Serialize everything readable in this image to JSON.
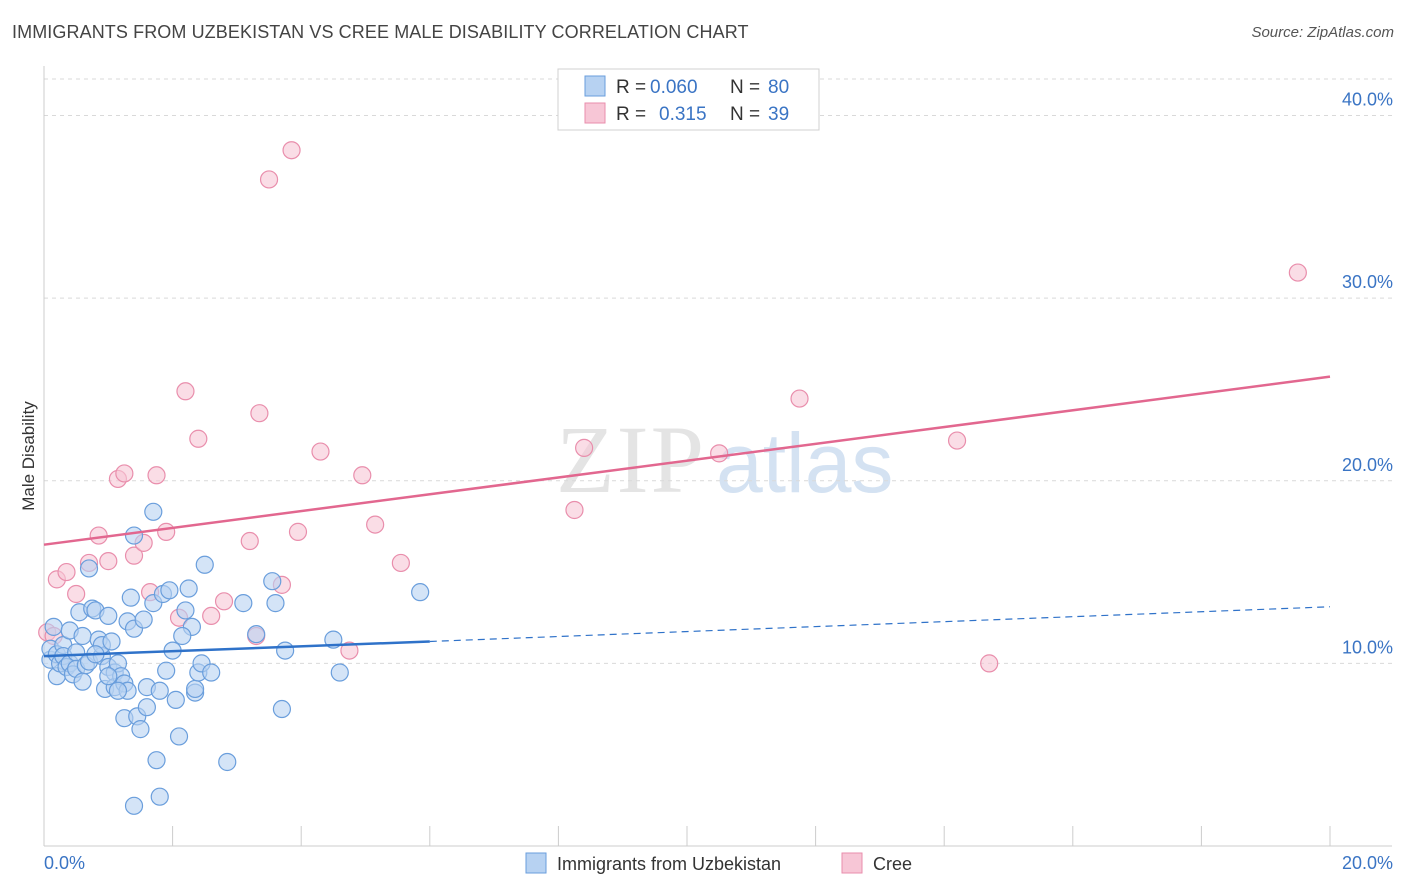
{
  "title": "IMMIGRANTS FROM UZBEKISTAN VS CREE MALE DISABILITY CORRELATION CHART",
  "source": "Source: ZipAtlas.com",
  "watermark": {
    "zip": "ZIP",
    "atlas": "atlas"
  },
  "colors": {
    "blue_fill": "#b7d2f2",
    "blue_stroke": "#6a9edc",
    "blue_line": "#2f72c9",
    "pink_fill": "#f7c6d6",
    "pink_stroke": "#e98eac",
    "pink_line": "#e2678f",
    "axis_label": "#3a74c4",
    "grid": "#d9d9d9"
  },
  "legend_stats": [
    {
      "r_label": "R =",
      "r_value": "0.060",
      "n_label": "N =",
      "n_value": "80"
    },
    {
      "r_label": "R =",
      "r_value": "0.315",
      "n_label": "N =",
      "n_value": "39"
    }
  ],
  "chart_data": {
    "type": "scatter",
    "title": "IMMIGRANTS FROM UZBEKISTAN VS CREE MALE DISABILITY CORRELATION CHART",
    "xlabel": "",
    "ylabel": "Male Disability",
    "xlim": [
      0,
      20
    ],
    "ylim": [
      0,
      42
    ],
    "x_tick_labels": [
      "0.0%",
      "20.0%"
    ],
    "y_tick_labels": [
      "10.0%",
      "20.0%",
      "30.0%",
      "40.0%"
    ],
    "y_ticks": [
      10,
      20,
      30,
      40
    ],
    "grid": true,
    "legend_position": "bottom",
    "series": [
      {
        "name": "Immigrants from Uzbekistan",
        "trend": {
          "x": [
            0,
            6
          ],
          "y": [
            10.4,
            11.2
          ],
          "dashed_to": [
            20,
            13.1
          ]
        },
        "points": [
          [
            0.1,
            10.2
          ],
          [
            0.1,
            10.8
          ],
          [
            0.15,
            12.0
          ],
          [
            0.2,
            9.3
          ],
          [
            0.2,
            10.5
          ],
          [
            0.25,
            10.0
          ],
          [
            0.3,
            11.0
          ],
          [
            0.3,
            10.4
          ],
          [
            0.35,
            9.8
          ],
          [
            0.4,
            11.8
          ],
          [
            0.4,
            10.0
          ],
          [
            0.45,
            9.4
          ],
          [
            0.5,
            10.6
          ],
          [
            0.5,
            9.7
          ],
          [
            0.55,
            12.8
          ],
          [
            0.6,
            9.0
          ],
          [
            0.6,
            11.5
          ],
          [
            0.65,
            9.9
          ],
          [
            0.7,
            15.2
          ],
          [
            0.7,
            10.1
          ],
          [
            0.75,
            13.0
          ],
          [
            0.8,
            12.9
          ],
          [
            0.85,
            11.3
          ],
          [
            0.9,
            10.4
          ],
          [
            0.9,
            11.0
          ],
          [
            0.95,
            8.6
          ],
          [
            1.0,
            12.6
          ],
          [
            1.0,
            9.8
          ],
          [
            1.05,
            11.2
          ],
          [
            1.1,
            9.5
          ],
          [
            1.1,
            8.7
          ],
          [
            1.15,
            10.0
          ],
          [
            1.2,
            9.3
          ],
          [
            1.25,
            8.9
          ],
          [
            1.25,
            7.0
          ],
          [
            1.3,
            8.5
          ],
          [
            1.3,
            12.3
          ],
          [
            1.35,
            13.6
          ],
          [
            1.4,
            11.9
          ],
          [
            1.4,
            17.0
          ],
          [
            1.45,
            7.1
          ],
          [
            1.5,
            6.4
          ],
          [
            1.55,
            12.4
          ],
          [
            1.6,
            8.7
          ],
          [
            1.6,
            7.6
          ],
          [
            1.7,
            13.3
          ],
          [
            1.7,
            18.3
          ],
          [
            1.75,
            4.7
          ],
          [
            1.8,
            8.5
          ],
          [
            1.85,
            13.8
          ],
          [
            1.9,
            9.6
          ],
          [
            1.95,
            14.0
          ],
          [
            2.0,
            10.7
          ],
          [
            2.05,
            8.0
          ],
          [
            2.1,
            6.0
          ],
          [
            2.2,
            12.9
          ],
          [
            2.25,
            14.1
          ],
          [
            2.3,
            12.0
          ],
          [
            2.35,
            8.4
          ],
          [
            2.35,
            8.6
          ],
          [
            2.4,
            9.5
          ],
          [
            2.45,
            10.0
          ],
          [
            2.5,
            15.4
          ],
          [
            2.6,
            9.5
          ],
          [
            2.85,
            4.6
          ],
          [
            3.1,
            13.3
          ],
          [
            3.3,
            11.6
          ],
          [
            3.55,
            14.5
          ],
          [
            3.6,
            13.3
          ],
          [
            3.7,
            7.5
          ],
          [
            3.75,
            10.7
          ],
          [
            4.5,
            11.3
          ],
          [
            4.6,
            9.5
          ],
          [
            5.85,
            13.9
          ],
          [
            1.4,
            2.2
          ],
          [
            1.8,
            2.7
          ],
          [
            1.0,
            9.3
          ],
          [
            0.8,
            10.5
          ],
          [
            2.15,
            11.5
          ],
          [
            1.15,
            8.5
          ]
        ]
      },
      {
        "name": "Cree",
        "trend": {
          "x": [
            0,
            20
          ],
          "y": [
            16.5,
            25.7
          ]
        },
        "points": [
          [
            0.05,
            11.7
          ],
          [
            0.15,
            11.5
          ],
          [
            0.2,
            14.6
          ],
          [
            0.35,
            15.0
          ],
          [
            0.5,
            13.8
          ],
          [
            0.7,
            15.5
          ],
          [
            0.85,
            17.0
          ],
          [
            1.0,
            15.6
          ],
          [
            1.15,
            20.1
          ],
          [
            1.25,
            20.4
          ],
          [
            1.4,
            15.9
          ],
          [
            1.55,
            16.6
          ],
          [
            1.65,
            13.9
          ],
          [
            1.75,
            20.3
          ],
          [
            1.9,
            17.2
          ],
          [
            2.1,
            12.5
          ],
          [
            2.2,
            24.9
          ],
          [
            2.4,
            22.3
          ],
          [
            2.6,
            12.6
          ],
          [
            2.8,
            13.4
          ],
          [
            3.2,
            16.7
          ],
          [
            3.3,
            11.5
          ],
          [
            3.35,
            23.7
          ],
          [
            3.5,
            36.5
          ],
          [
            3.7,
            14.3
          ],
          [
            3.85,
            38.1
          ],
          [
            3.95,
            17.2
          ],
          [
            4.3,
            21.6
          ],
          [
            4.75,
            10.7
          ],
          [
            4.95,
            20.3
          ],
          [
            5.15,
            17.6
          ],
          [
            5.55,
            15.5
          ],
          [
            8.25,
            18.4
          ],
          [
            8.4,
            21.8
          ],
          [
            10.5,
            21.5
          ],
          [
            11.75,
            24.5
          ],
          [
            14.2,
            22.2
          ],
          [
            14.7,
            10.0
          ],
          [
            19.5,
            31.4
          ]
        ]
      }
    ]
  }
}
